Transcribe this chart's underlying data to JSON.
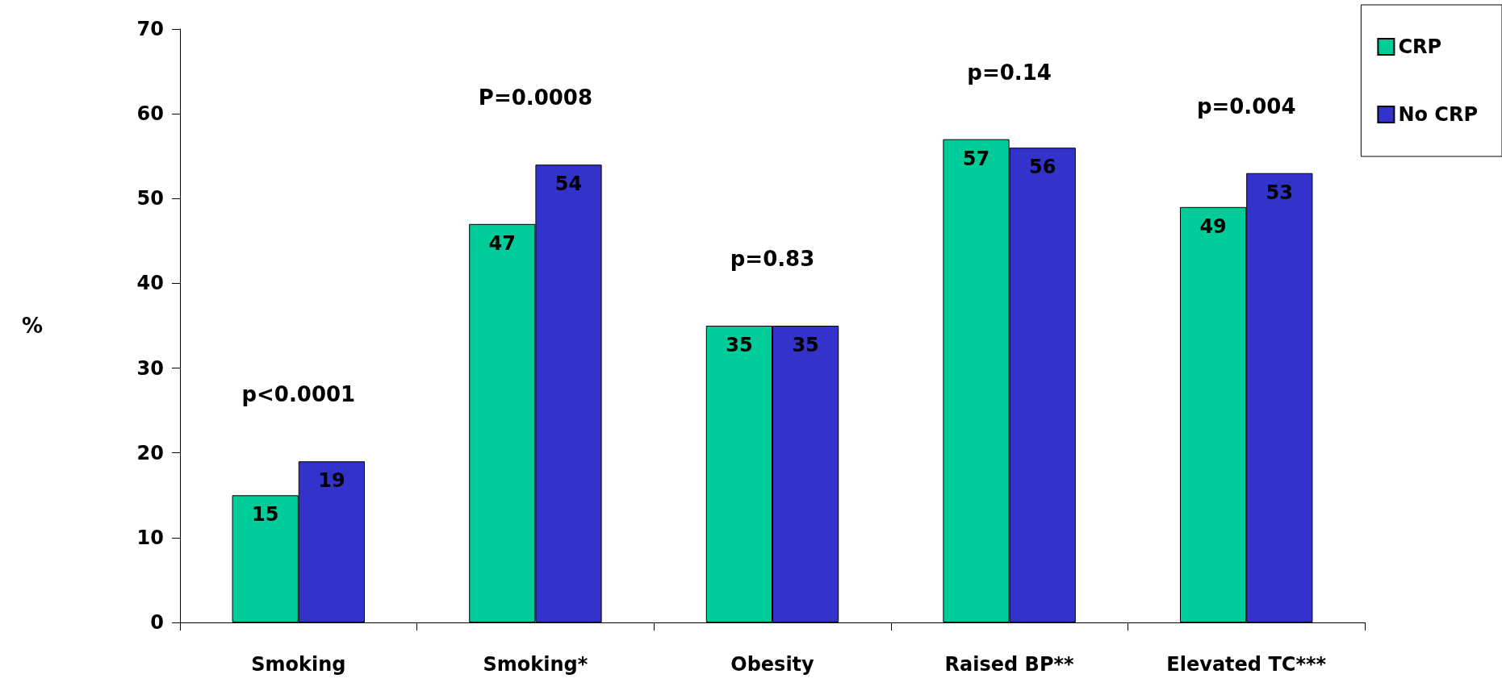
{
  "chart_data": {
    "type": "bar",
    "categories": [
      "Smoking",
      "Smoking*",
      "Obesity",
      "Raised BP**",
      "Elevated TC***"
    ],
    "series": [
      {
        "name": "CRP",
        "color": "#00cc99",
        "values": [
          15,
          47,
          35,
          57,
          49
        ]
      },
      {
        "name": "No CRP",
        "color": "#3333cc",
        "values": [
          19,
          54,
          35,
          56,
          53
        ]
      }
    ],
    "ylabel": "%",
    "ylim": [
      0,
      70
    ],
    "yticks": [
      0,
      10,
      20,
      30,
      40,
      50,
      60,
      70
    ],
    "annotations": [
      "p<0.0001",
      "P=0.0008",
      "p=0.83",
      "p=0.14",
      "p=0.004"
    ],
    "data_labels": true,
    "grid": false,
    "legend": "top right"
  }
}
